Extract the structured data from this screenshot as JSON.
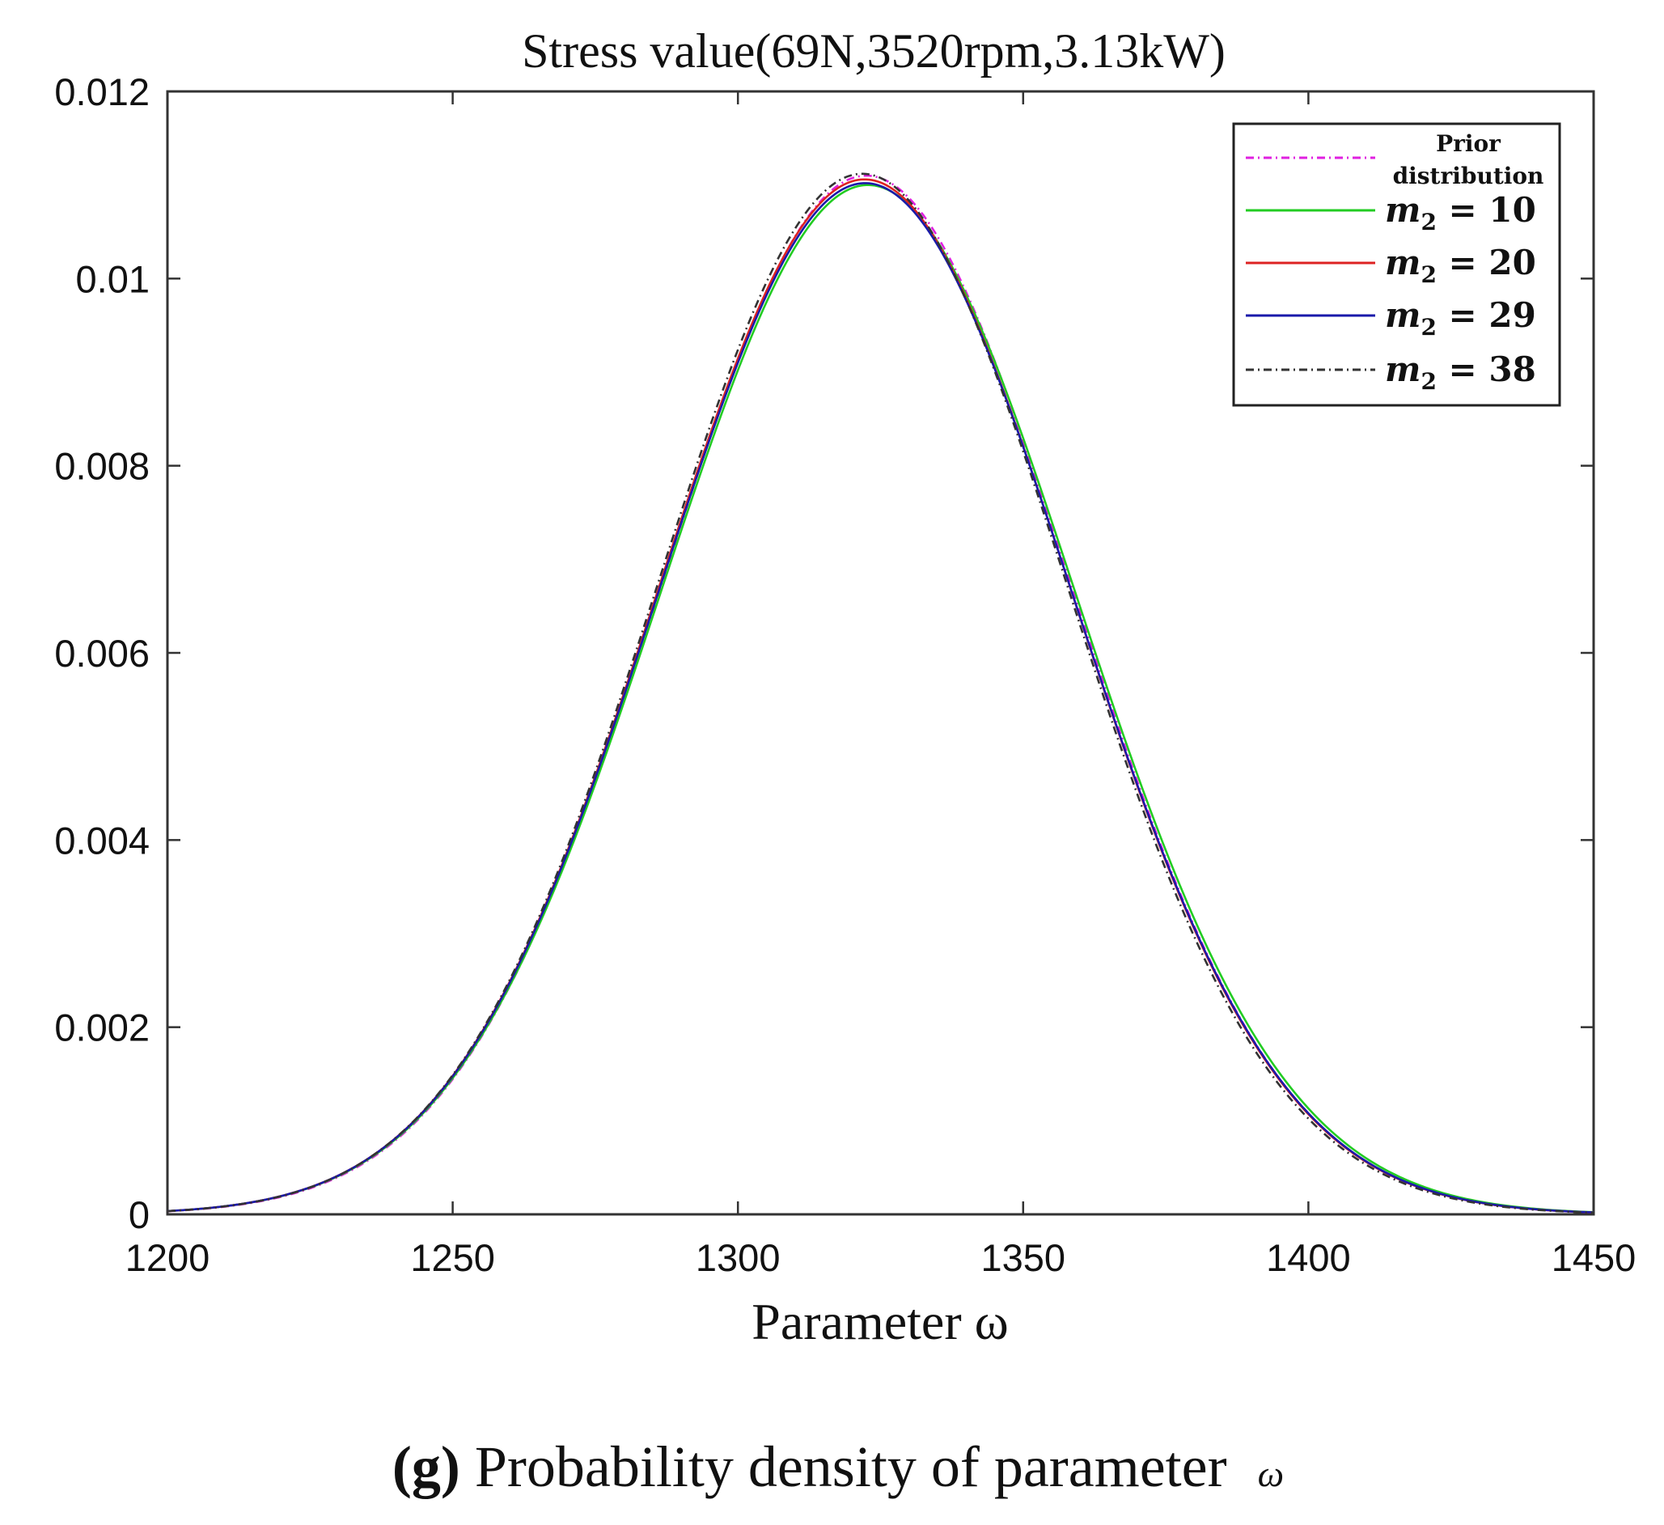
{
  "chart_data": {
    "type": "line",
    "title": "Stress value(69N,3520rpm,3.13kW)",
    "xlabel": "Parameter ω",
    "ylabel": "",
    "xlim": [
      1200,
      1450
    ],
    "ylim": [
      0,
      0.012
    ],
    "xticks": [
      1200,
      1250,
      1300,
      1350,
      1400,
      1450
    ],
    "xtick_labels": [
      "1200",
      "1250",
      "1300",
      "1350",
      "1400",
      "1450"
    ],
    "yticks": [
      0,
      0.002,
      0.004,
      0.006,
      0.008,
      0.01,
      0.012
    ],
    "ytick_labels": [
      "0",
      "0.002",
      "0.004",
      "0.006",
      "0.008",
      "0.01",
      "0.012"
    ],
    "grid": false,
    "legend_position": "top-right",
    "series": [
      {
        "name": "Prior distribution",
        "legend_lines": [
          "Prior",
          "distribution"
        ],
        "color": "#e020e0",
        "style": "dashdot",
        "mean": 1322.5,
        "sd": 35.9,
        "peak": 0.0111
      },
      {
        "name": "m2 = 10",
        "legend_var": "m",
        "legend_sub": "2",
        "legend_rest": " = 10",
        "color": "#22cc22",
        "style": "solid",
        "mean": 1322.8,
        "sd": 36.2,
        "peak": 0.011
      },
      {
        "name": "m2 = 20",
        "legend_var": "m",
        "legend_sub": "2",
        "legend_rest": " = 20",
        "color": "#dd2222",
        "style": "solid",
        "mean": 1322.2,
        "sd": 36.0,
        "peak": 0.01106
      },
      {
        "name": "m2 = 29",
        "legend_var": "m",
        "legend_sub": "2",
        "legend_rest": " = 29",
        "color": "#1a1aaa",
        "style": "solid",
        "mean": 1322.3,
        "sd": 36.05,
        "peak": 0.01102
      },
      {
        "name": "m2 = 38",
        "legend_var": "m",
        "legend_sub": "2",
        "legend_rest": " = 38",
        "color": "#333333",
        "style": "dashdot",
        "mean": 1321.8,
        "sd": 35.8,
        "peak": 0.01112
      }
    ]
  },
  "caption": {
    "label": "(g)",
    "text": " Probability density of parameter ",
    "symbol": "ω"
  }
}
